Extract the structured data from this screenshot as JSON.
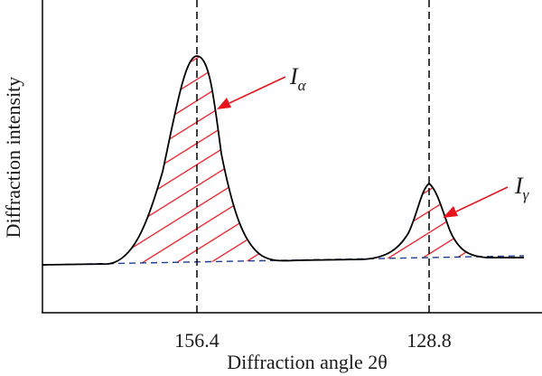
{
  "chart_data": {
    "type": "line",
    "title": "",
    "xlabel": "Diffraction angle 2θ",
    "ylabel": "Diffraction intensity",
    "x_ticks": [
      "156.4",
      "128.8"
    ],
    "axis_color": "#000000",
    "curve_color": "#000000",
    "baseline_color": "#1f3a93",
    "hatch_color": "#e8141c",
    "peaks": [
      {
        "name": "alpha",
        "label_main": "I",
        "label_sub": "α",
        "position_label": "156.4",
        "relative_height": 1.0
      },
      {
        "name": "gamma",
        "label_main": "I",
        "label_sub": "γ",
        "position_label": "128.8",
        "relative_height": 0.36
      }
    ]
  }
}
